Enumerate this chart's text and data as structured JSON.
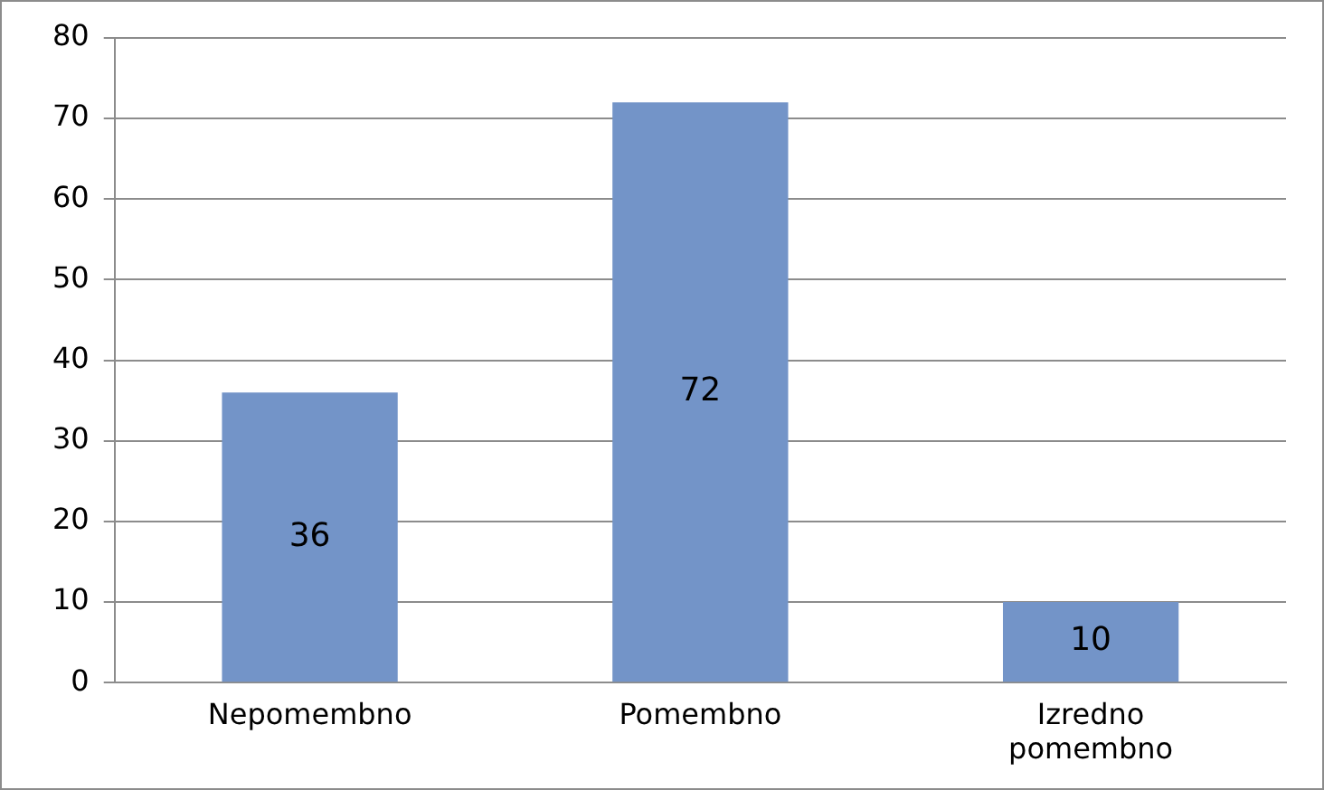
{
  "chart_data": {
    "type": "bar",
    "categories": [
      "Nepomembno",
      "Pomembno",
      "Izredno pomembno"
    ],
    "values": [
      36,
      72,
      10
    ],
    "color": "#7394c8",
    "ylim": [
      0,
      80
    ],
    "yticks": [
      0,
      10,
      20,
      30,
      40,
      50,
      60,
      70,
      80
    ],
    "grid": "y",
    "data_labels": true,
    "legend": false
  }
}
